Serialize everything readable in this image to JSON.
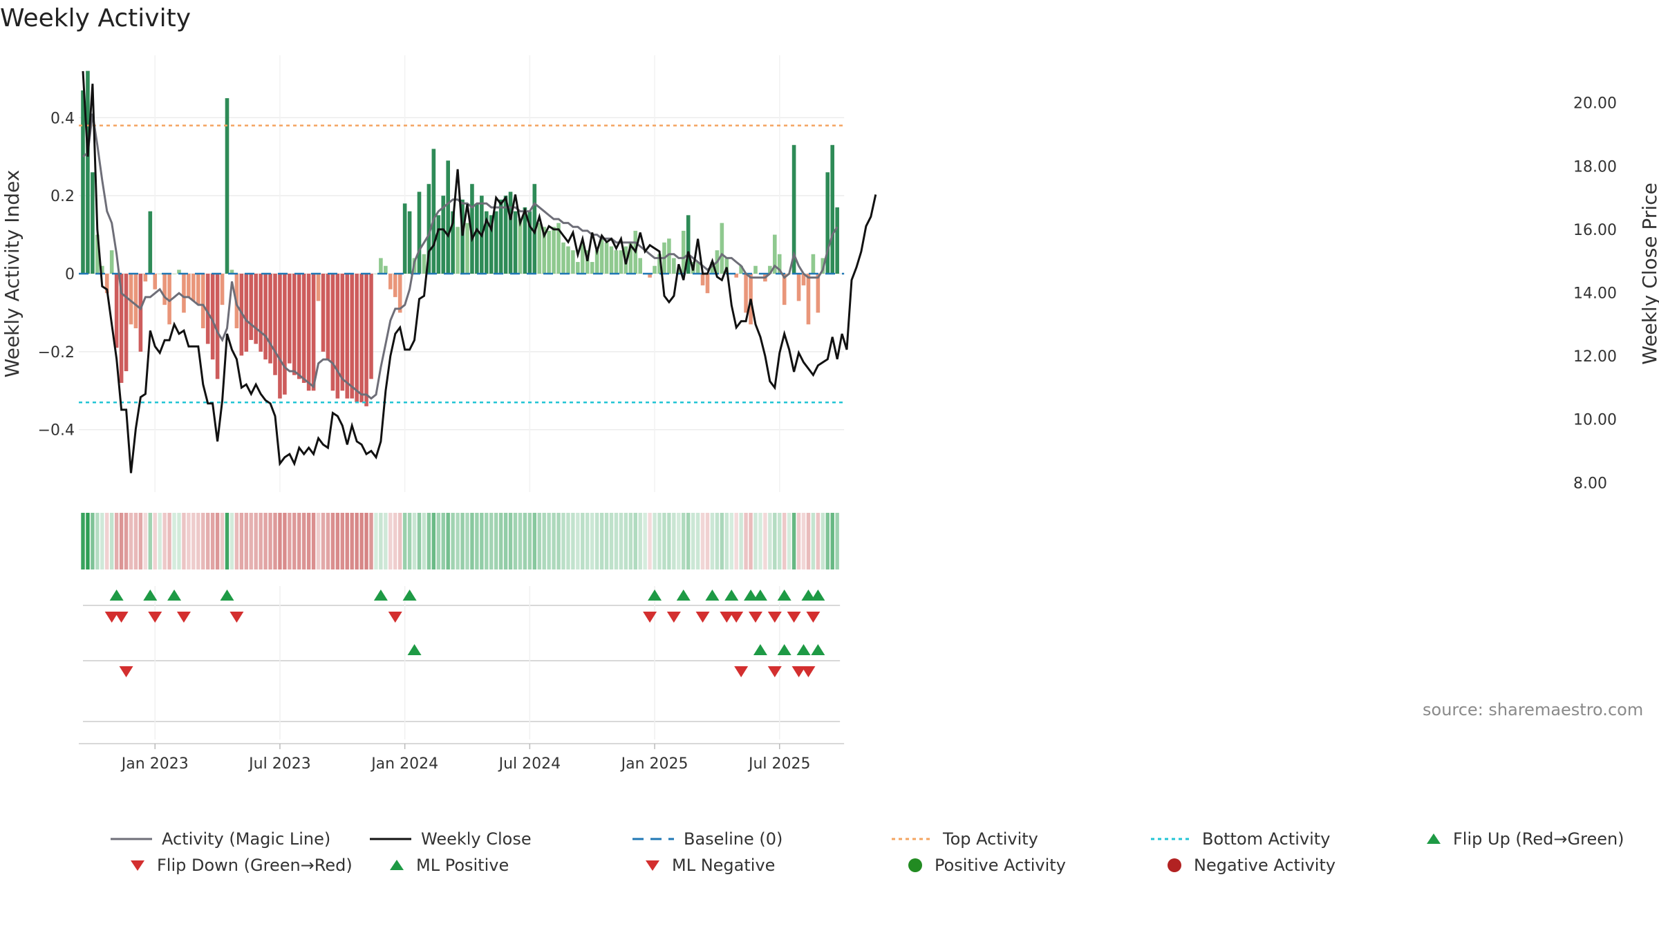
{
  "chart_data": {
    "type": "bar",
    "title": "Weekly Activity",
    "ylabel_left": "Weekly Activity Index",
    "ylabel_right": "Weekly Close Price",
    "source": "source: sharemaestro.com",
    "left_ylim": [
      -0.56,
      0.56
    ],
    "right_ylim": [
      7.7,
      21.5
    ],
    "left_ticks": [
      {
        "v": 0.4,
        "label": "0.4"
      },
      {
        "v": 0.2,
        "label": "0.2"
      },
      {
        "v": 0,
        "label": "0"
      },
      {
        "v": -0.2,
        "label": "−0.2"
      },
      {
        "v": -0.4,
        "label": "−0.4"
      }
    ],
    "right_ticks": [
      {
        "v": 20,
        "label": "20.00"
      },
      {
        "v": 18,
        "label": "18.00"
      },
      {
        "v": 16,
        "label": "16.00"
      },
      {
        "v": 14,
        "label": "14.00"
      },
      {
        "v": 12,
        "label": "12.00"
      },
      {
        "v": 10,
        "label": "10.00"
      },
      {
        "v": 8,
        "label": "8.00"
      }
    ],
    "x_ticks": [
      {
        "week": 15,
        "label": "Jan 2023"
      },
      {
        "week": 41,
        "label": "Jul 2023"
      },
      {
        "week": 67,
        "label": "Jan 2024"
      },
      {
        "week": 93,
        "label": "Jul 2024"
      },
      {
        "week": 119,
        "label": "Jan 2025"
      },
      {
        "week": 145,
        "label": "Jul 2025"
      }
    ],
    "top_activity": 0.38,
    "bottom_activity": -0.33,
    "activity": [
      0.47,
      0.52,
      0.26,
      0.1,
      0.02,
      -0.05,
      0.06,
      -0.19,
      -0.28,
      -0.25,
      -0.13,
      -0.14,
      -0.2,
      -0.02,
      0.16,
      -0.04,
      0.0,
      -0.08,
      -0.13,
      0.0,
      0.01,
      -0.1,
      -0.06,
      -0.07,
      -0.08,
      -0.14,
      -0.18,
      -0.22,
      -0.27,
      -0.08,
      0.45,
      0.01,
      -0.14,
      -0.21,
      -0.2,
      -0.17,
      -0.18,
      -0.2,
      -0.22,
      -0.23,
      -0.26,
      -0.32,
      -0.31,
      -0.23,
      -0.26,
      -0.27,
      -0.28,
      -0.3,
      -0.3,
      -0.07,
      -0.2,
      -0.22,
      -0.3,
      -0.32,
      -0.3,
      -0.32,
      -0.32,
      -0.33,
      -0.33,
      -0.34,
      -0.27,
      0.0,
      0.04,
      0.02,
      -0.04,
      -0.06,
      -0.1,
      0.18,
      0.16,
      0.04,
      0.21,
      0.05,
      0.23,
      0.32,
      0.15,
      0.2,
      0.29,
      0.16,
      0.12,
      0.19,
      0.13,
      0.23,
      0.18,
      0.2,
      0.16,
      0.15,
      0.16,
      0.19,
      0.2,
      0.21,
      0.16,
      0.14,
      0.17,
      0.16,
      0.23,
      0.13,
      0.12,
      0.11,
      0.12,
      0.13,
      0.08,
      0.07,
      0.06,
      0.03,
      0.08,
      0.06,
      0.03,
      0.06,
      0.09,
      0.08,
      0.07,
      0.06,
      0.06,
      0.07,
      0.08,
      0.11,
      0.04,
      0.0,
      -0.01,
      0.02,
      0.05,
      0.08,
      0.09,
      0.04,
      0.01,
      0.11,
      0.15,
      0.03,
      0.03,
      -0.03,
      -0.05,
      0.03,
      0.06,
      0.13,
      0.04,
      0.0,
      -0.01,
      0.02,
      -0.1,
      -0.13,
      0.02,
      0.0,
      -0.02,
      0.02,
      0.1,
      0.05,
      -0.08,
      0.0,
      0.33,
      -0.07,
      -0.03,
      -0.13,
      0.05,
      -0.1,
      0.04,
      0.26,
      0.33,
      0.17
    ],
    "magic_line": [
      0.3,
      0.31,
      0.41,
      0.33,
      0.24,
      0.16,
      0.13,
      0.05,
      -0.05,
      -0.06,
      -0.07,
      -0.08,
      -0.09,
      -0.06,
      -0.06,
      -0.05,
      -0.04,
      -0.06,
      -0.07,
      -0.06,
      -0.05,
      -0.06,
      -0.06,
      -0.07,
      -0.08,
      -0.08,
      -0.1,
      -0.12,
      -0.15,
      -0.17,
      -0.14,
      -0.02,
      -0.08,
      -0.1,
      -0.12,
      -0.13,
      -0.14,
      -0.15,
      -0.16,
      -0.18,
      -0.2,
      -0.22,
      -0.24,
      -0.25,
      -0.25,
      -0.26,
      -0.27,
      -0.28,
      -0.29,
      -0.23,
      -0.22,
      -0.22,
      -0.23,
      -0.25,
      -0.27,
      -0.28,
      -0.29,
      -0.3,
      -0.31,
      -0.31,
      -0.32,
      -0.31,
      -0.24,
      -0.18,
      -0.12,
      -0.09,
      -0.09,
      -0.08,
      -0.04,
      0.03,
      0.06,
      0.08,
      0.1,
      0.14,
      0.16,
      0.17,
      0.18,
      0.19,
      0.19,
      0.18,
      0.18,
      0.17,
      0.18,
      0.18,
      0.18,
      0.17,
      0.17,
      0.17,
      0.17,
      0.17,
      0.17,
      0.16,
      0.16,
      0.16,
      0.18,
      0.17,
      0.16,
      0.15,
      0.14,
      0.14,
      0.13,
      0.13,
      0.12,
      0.12,
      0.11,
      0.11,
      0.1,
      0.1,
      0.09,
      0.09,
      0.09,
      0.08,
      0.08,
      0.08,
      0.08,
      0.08,
      0.07,
      0.06,
      0.05,
      0.04,
      0.04,
      0.04,
      0.05,
      0.05,
      0.04,
      0.04,
      0.05,
      0.04,
      0.03,
      0.02,
      0.01,
      0.02,
      0.03,
      0.05,
      0.04,
      0.04,
      0.03,
      0.02,
      0.0,
      -0.01,
      -0.01,
      -0.01,
      -0.01,
      0.0,
      0.02,
      0.01,
      -0.01,
      0.0,
      0.05,
      0.02,
      0.0,
      -0.01,
      -0.01,
      -0.01,
      0.01,
      0.06,
      0.1,
      0.12
    ],
    "weekly_close": [
      21.0,
      18.3,
      20.6,
      16.0,
      14.2,
      14.1,
      13.0,
      11.9,
      10.3,
      10.3,
      8.3,
      9.7,
      10.7,
      10.8,
      12.8,
      12.3,
      12.1,
      12.5,
      12.5,
      13.0,
      12.7,
      12.8,
      12.3,
      12.3,
      12.3,
      11.1,
      10.5,
      10.5,
      9.3,
      10.6,
      12.7,
      12.2,
      11.9,
      11.0,
      11.1,
      10.8,
      11.1,
      10.8,
      10.6,
      10.5,
      10.1,
      8.6,
      8.8,
      8.9,
      8.6,
      9.1,
      8.9,
      9.1,
      8.9,
      9.4,
      9.2,
      9.1,
      10.2,
      10.1,
      9.8,
      9.2,
      9.8,
      9.3,
      9.2,
      8.9,
      9.0,
      8.8,
      9.3,
      10.9,
      12.0,
      12.7,
      12.9,
      12.2,
      12.2,
      12.5,
      13.8,
      13.9,
      15.3,
      15.5,
      16.0,
      16.0,
      15.8,
      16.2,
      17.9,
      15.8,
      16.8,
      15.7,
      16.0,
      15.8,
      16.3,
      16.0,
      17.0,
      16.8,
      17.0,
      16.3,
      17.1,
      16.2,
      16.6,
      16.1,
      15.9,
      16.4,
      15.8,
      16.1,
      16.0,
      16.0,
      15.8,
      15.6,
      15.9,
      15.2,
      15.7,
      15.0,
      15.9,
      15.3,
      15.8,
      15.6,
      15.7,
      15.4,
      15.7,
      14.9,
      15.5,
      15.3,
      15.9,
      15.3,
      15.5,
      15.4,
      15.3,
      13.9,
      13.7,
      13.9,
      14.9,
      14.4,
      15.3,
      14.7,
      15.7,
      14.6,
      14.6,
      15.0,
      14.5,
      14.4,
      14.8,
      13.6,
      12.9,
      13.1,
      13.1,
      13.8,
      13.0,
      12.6,
      12.0,
      11.2,
      11.0,
      12.1,
      12.7,
      12.2,
      11.5,
      12.1,
      11.8,
      11.6,
      11.4,
      11.7,
      11.8,
      11.9,
      12.6,
      11.9,
      12.7,
      12.2,
      14.4,
      14.8,
      15.3,
      16.1,
      16.4,
      17.1
    ],
    "flip_up_weeks": [
      7,
      14,
      19,
      30,
      62,
      68,
      119,
      125,
      131,
      135,
      139,
      141,
      146,
      151,
      153
    ],
    "flip_down_weeks": [
      6,
      8,
      15,
      21,
      32,
      65,
      118,
      123,
      129,
      134,
      136,
      140,
      144,
      148,
      152
    ],
    "ml_positive_weeks": [
      69,
      141,
      146,
      150,
      153
    ],
    "ml_negative_weeks": [
      9,
      137,
      144,
      149,
      151
    ],
    "legend": [
      {
        "key": "magic",
        "label": "Activity (Magic Line)"
      },
      {
        "key": "close",
        "label": "Weekly Close"
      },
      {
        "key": "baseline",
        "label": "Baseline (0)"
      },
      {
        "key": "top",
        "label": "Top Activity"
      },
      {
        "key": "bottom",
        "label": "Bottom Activity"
      },
      {
        "key": "flipup",
        "label": "Flip Up (Red→Green)"
      },
      {
        "key": "flipdown",
        "label": "Flip Down (Green→Red)"
      },
      {
        "key": "mlpos",
        "label": "ML Positive"
      },
      {
        "key": "mlneg",
        "label": "ML Negative"
      },
      {
        "key": "posact",
        "label": "Positive Activity"
      },
      {
        "key": "negact",
        "label": "Negative Activity"
      }
    ],
    "colors": {
      "pos_strong": "#2e8b57",
      "pos_light": "#8fc98f",
      "neg_strong": "#cd5c5c",
      "neg_light": "#e9967a",
      "magic": "#6e6e78",
      "close": "#111111",
      "baseline": "#1f77b4",
      "top": "#f4a460",
      "bottom": "#22c4d4",
      "flip_up": "#1e9a45",
      "flip_down": "#d32f2f",
      "pos_dot": "#228b22",
      "neg_dot": "#b22222"
    }
  }
}
